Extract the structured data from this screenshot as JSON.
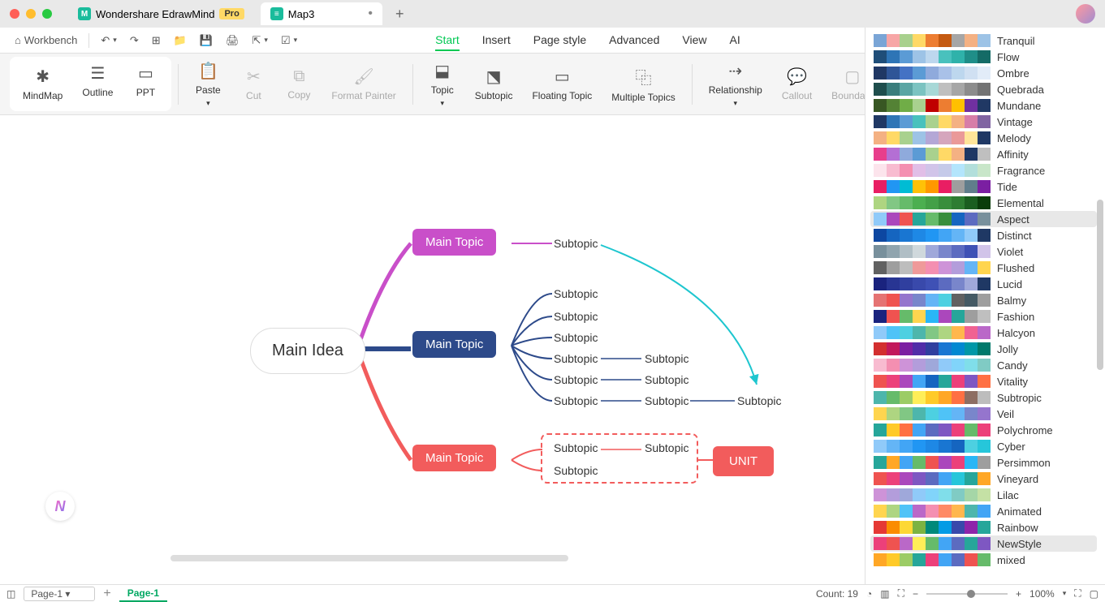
{
  "titlebar": {
    "app_name": "Wondershare EdrawMind",
    "pro_badge": "Pro",
    "tabs": [
      {
        "label": "Map3",
        "modified": true
      }
    ]
  },
  "quickbar": {
    "workbench": "Workbench"
  },
  "menu": {
    "tabs": [
      "Start",
      "Insert",
      "Page style",
      "Advanced",
      "View",
      "AI"
    ],
    "active_index": 0
  },
  "ribbon": {
    "view_modes": [
      {
        "label": "MindMap",
        "active": true
      },
      {
        "label": "Outline",
        "active": false
      },
      {
        "label": "PPT",
        "active": false
      }
    ],
    "paste": "Paste",
    "cut": "Cut",
    "copy": "Copy",
    "format_painter": "Format Painter",
    "topic": "Topic",
    "subtopic": "Subtopic",
    "floating_topic": "Floating Topic",
    "multiple_topics": "Multiple Topics",
    "relationship": "Relationship",
    "callout": "Callout",
    "boundary": "Boundary"
  },
  "mindmap": {
    "main_idea": "Main Idea",
    "topic1": {
      "label": "Main Topic",
      "color": "#c94fc9",
      "subtopics": [
        "Subtopic"
      ]
    },
    "topic2": {
      "label": "Main Topic",
      "color": "#2d4a8a",
      "rows": [
        {
          "a": "Subtopic"
        },
        {
          "a": "Subtopic"
        },
        {
          "a": "Subtopic"
        },
        {
          "a": "Subtopic",
          "b": "Subtopic"
        },
        {
          "a": "Subtopic",
          "b": "Subtopic"
        },
        {
          "a": "Subtopic",
          "b": "Subtopic",
          "c": "Subtopic"
        }
      ]
    },
    "topic3": {
      "label": "Main Topic",
      "color": "#f25c5c",
      "rows": [
        {
          "a": "Subtopic",
          "b": "Subtopic"
        },
        {
          "a": "Subtopic"
        }
      ]
    },
    "floating": {
      "label": "UNIT",
      "color": "#f25c5c"
    },
    "relationship_color": "#1ec6cf"
  },
  "palettes": {
    "selected_index": 11,
    "also_highlight": "NewStyle",
    "items": [
      {
        "name": "Tranquil",
        "colors": [
          "#7aa5d6",
          "#f7a6a6",
          "#a8d08d",
          "#ffd966",
          "#ed7d31",
          "#c55a11",
          "#a6a6a6",
          "#f4b183",
          "#9dc3e6"
        ]
      },
      {
        "name": "Flow",
        "colors": [
          "#1f4e79",
          "#2e75b6",
          "#5b9bd5",
          "#9dc3e6",
          "#bdd7ee",
          "#49c1bd",
          "#2fb2aa",
          "#1f8e88",
          "#146b66"
        ]
      },
      {
        "name": "Ombre",
        "colors": [
          "#203864",
          "#2f5597",
          "#4472c4",
          "#5b9bd5",
          "#8faadc",
          "#a9c1e8",
          "#bdd7ee",
          "#d0e0f2",
          "#e2ecf8"
        ]
      },
      {
        "name": "Quebrada",
        "colors": [
          "#1f4e4d",
          "#3a7d7c",
          "#5aa5a4",
          "#7bc3c1",
          "#a7d8d7",
          "#bfbfbf",
          "#a6a6a6",
          "#8c8c8c",
          "#737373"
        ]
      },
      {
        "name": "Mundane",
        "colors": [
          "#385723",
          "#548235",
          "#70ad47",
          "#a9d18e",
          "#c00000",
          "#ed7d31",
          "#ffc000",
          "#7030a0",
          "#203864"
        ]
      },
      {
        "name": "Vintage",
        "colors": [
          "#203864",
          "#2e75b6",
          "#5b9bd5",
          "#49c1bd",
          "#a9d18e",
          "#ffd966",
          "#f4b183",
          "#d77da8",
          "#8064a2"
        ]
      },
      {
        "name": "Melody",
        "colors": [
          "#f4b183",
          "#ffd966",
          "#a9d18e",
          "#9dc3e6",
          "#b4a7d6",
          "#d5a6bd",
          "#ea9999",
          "#ffe599",
          "#1f3864"
        ]
      },
      {
        "name": "Affinity",
        "colors": [
          "#e83e8c",
          "#b46fd4",
          "#8faadc",
          "#5b9bd5",
          "#a9d18e",
          "#ffd966",
          "#f4b183",
          "#1f3864",
          "#bfbfbf"
        ]
      },
      {
        "name": "Fragrance",
        "colors": [
          "#fce4ec",
          "#f8bbd0",
          "#f48fb1",
          "#e1bee7",
          "#d1c4e9",
          "#c5cae9",
          "#b3e5fc",
          "#b2dfdb",
          "#c8e6c9"
        ]
      },
      {
        "name": "Tide",
        "colors": [
          "#e91e63",
          "#2196f3",
          "#00bcd4",
          "#ffc107",
          "#ff9800",
          "#e91e63",
          "#9e9e9e",
          "#607d8b",
          "#7b1fa2"
        ]
      },
      {
        "name": "Elemental",
        "colors": [
          "#aed581",
          "#81c784",
          "#66bb6a",
          "#4caf50",
          "#43a047",
          "#388e3c",
          "#2e7d32",
          "#1b5e20",
          "#0a3d0a"
        ]
      },
      {
        "name": "Aspect",
        "colors": [
          "#90caf9",
          "#ab47bc",
          "#ef5350",
          "#26a69a",
          "#66bb6a",
          "#388e3c",
          "#1565c0",
          "#5c6bc0",
          "#78909c"
        ]
      },
      {
        "name": "Distinct",
        "colors": [
          "#0d47a1",
          "#1565c0",
          "#1976d2",
          "#1e88e5",
          "#2196f3",
          "#42a5f5",
          "#64b5f6",
          "#90caf9",
          "#1f3864"
        ]
      },
      {
        "name": "Violet",
        "colors": [
          "#78909c",
          "#90a4ae",
          "#b0bec5",
          "#cfd8dc",
          "#9fa8da",
          "#7986cb",
          "#5c6bc0",
          "#3f51b5",
          "#d1c4e9"
        ]
      },
      {
        "name": "Flushed",
        "colors": [
          "#616161",
          "#9e9e9e",
          "#bdbdbd",
          "#ef9a9a",
          "#f48fb1",
          "#ce93d8",
          "#b39ddb",
          "#64b5f6",
          "#ffd54f"
        ]
      },
      {
        "name": "Lucid",
        "colors": [
          "#1a237e",
          "#283593",
          "#303f9f",
          "#3949ab",
          "#3f51b5",
          "#5c6bc0",
          "#7986cb",
          "#9fa8da",
          "#1f3864"
        ]
      },
      {
        "name": "Balmy",
        "colors": [
          "#e57373",
          "#ef5350",
          "#9575cd",
          "#7986cb",
          "#64b5f6",
          "#4dd0e1",
          "#616161",
          "#455a64",
          "#9e9e9e"
        ]
      },
      {
        "name": "Fashion",
        "colors": [
          "#1a237e",
          "#ef5350",
          "#66bb6a",
          "#ffd54f",
          "#29b6f6",
          "#ab47bc",
          "#26a69a",
          "#9e9e9e",
          "#bfbfbf"
        ]
      },
      {
        "name": "Halcyon",
        "colors": [
          "#90caf9",
          "#4fc3f7",
          "#4dd0e1",
          "#4db6ac",
          "#81c784",
          "#aed581",
          "#ffb74d",
          "#f06292",
          "#ba68c8"
        ]
      },
      {
        "name": "Jolly",
        "colors": [
          "#d32f2f",
          "#c2185b",
          "#7b1fa2",
          "#512da8",
          "#303f9f",
          "#1976d2",
          "#0288d1",
          "#0097a7",
          "#00796b"
        ]
      },
      {
        "name": "Candy",
        "colors": [
          "#f8bbd0",
          "#f48fb1",
          "#ce93d8",
          "#b39ddb",
          "#9fa8da",
          "#90caf9",
          "#81d4fa",
          "#80deea",
          "#80cbc4"
        ]
      },
      {
        "name": "Vitality",
        "colors": [
          "#ef5350",
          "#ec407a",
          "#ab47bc",
          "#42a5f5",
          "#1565c0",
          "#26a69a",
          "#ec407a",
          "#7e57c2",
          "#ff7043"
        ]
      },
      {
        "name": "Subtropic",
        "colors": [
          "#4db6ac",
          "#66bb6a",
          "#9ccc65",
          "#ffee58",
          "#ffca28",
          "#ffa726",
          "#ff7043",
          "#8d6e63",
          "#bdbdbd"
        ]
      },
      {
        "name": "Veil",
        "colors": [
          "#ffd54f",
          "#aed581",
          "#81c784",
          "#4db6ac",
          "#4dd0e1",
          "#4fc3f7",
          "#64b5f6",
          "#7986cb",
          "#9575cd"
        ]
      },
      {
        "name": "Polychrome",
        "colors": [
          "#26a69a",
          "#ffca28",
          "#ff7043",
          "#42a5f5",
          "#5c6bc0",
          "#7e57c2",
          "#ec407a",
          "#66bb6a",
          "#ec407a"
        ]
      },
      {
        "name": "Cyber",
        "colors": [
          "#90caf9",
          "#64b5f6",
          "#42a5f5",
          "#2196f3",
          "#1e88e5",
          "#1976d2",
          "#1565c0",
          "#4dd0e1",
          "#26c6da"
        ]
      },
      {
        "name": "Persimmon",
        "colors": [
          "#26a69a",
          "#ffa726",
          "#42a5f5",
          "#66bb6a",
          "#ef5350",
          "#ab47bc",
          "#ec407a",
          "#29b6f6",
          "#9e9e9e"
        ]
      },
      {
        "name": "Vineyard",
        "colors": [
          "#ef5350",
          "#ec407a",
          "#ab47bc",
          "#7e57c2",
          "#5c6bc0",
          "#42a5f5",
          "#26c6da",
          "#26a69a",
          "#ffa726"
        ]
      },
      {
        "name": "Lilac",
        "colors": [
          "#ce93d8",
          "#b39ddb",
          "#9fa8da",
          "#90caf9",
          "#81d4fa",
          "#80deea",
          "#80cbc4",
          "#a5d6a7",
          "#c5e1a5"
        ]
      },
      {
        "name": "Animated",
        "colors": [
          "#ffd54f",
          "#aed581",
          "#4fc3f7",
          "#ba68c8",
          "#f48fb1",
          "#ff8a65",
          "#ffb74d",
          "#4db6ac",
          "#42a5f5"
        ]
      },
      {
        "name": "Rainbow",
        "colors": [
          "#e53935",
          "#fb8c00",
          "#fdd835",
          "#7cb342",
          "#00897b",
          "#039be5",
          "#3949ab",
          "#8e24aa",
          "#26a69a"
        ]
      },
      {
        "name": "NewStyle",
        "colors": [
          "#ec407a",
          "#ef5350",
          "#ba68c8",
          "#ffee58",
          "#66bb6a",
          "#42a5f5",
          "#5c6bc0",
          "#26a69a",
          "#7e57c2"
        ]
      },
      {
        "name": "mixed",
        "colors": [
          "#ffa726",
          "#ffca28",
          "#9ccc65",
          "#26a69a",
          "#ec407a",
          "#42a5f5",
          "#5c6bc0",
          "#ef5350",
          "#66bb6a"
        ]
      }
    ]
  },
  "statusbar": {
    "page_selector": "Page-1",
    "page_tab": "Page-1",
    "count_label": "Count: 19",
    "zoom": "100%"
  }
}
